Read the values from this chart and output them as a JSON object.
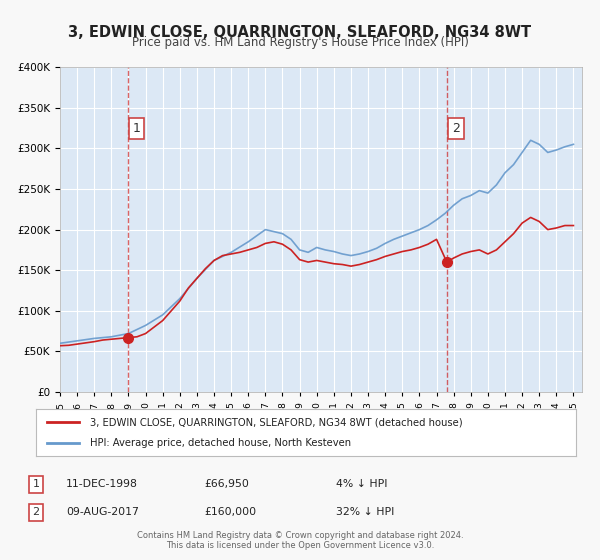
{
  "title": "3, EDWIN CLOSE, QUARRINGTON, SLEAFORD, NG34 8WT",
  "subtitle": "Price paid vs. HM Land Registry's House Price Index (HPI)",
  "bg_color": "#f0f4fa",
  "plot_bg_color": "#dce8f5",
  "grid_color": "#ffffff",
  "red_color": "#cc2222",
  "blue_color": "#6699cc",
  "sale1": {
    "date_num": 1998.95,
    "price": 66950,
    "label": "1",
    "date_str": "11-DEC-1998",
    "pct": "4% ↓ HPI"
  },
  "sale2": {
    "date_num": 2017.6,
    "price": 160000,
    "label": "2",
    "date_str": "09-AUG-2017",
    "pct": "32% ↓ HPI"
  },
  "legend_label_red": "3, EDWIN CLOSE, QUARRINGTON, SLEAFORD, NG34 8WT (detached house)",
  "legend_label_blue": "HPI: Average price, detached house, North Kesteven",
  "annotation1": "1    11-DEC-1998              £66,950          4% ↓ HPI",
  "annotation2": "2    09-AUG-2017              £160,000        32% ↓ HPI",
  "footer": "Contains HM Land Registry data © Crown copyright and database right 2024.\nThis data is licensed under the Open Government Licence v3.0.",
  "ylim": [
    0,
    400000
  ],
  "xlim_start": 1995.0,
  "xlim_end": 2025.5
}
